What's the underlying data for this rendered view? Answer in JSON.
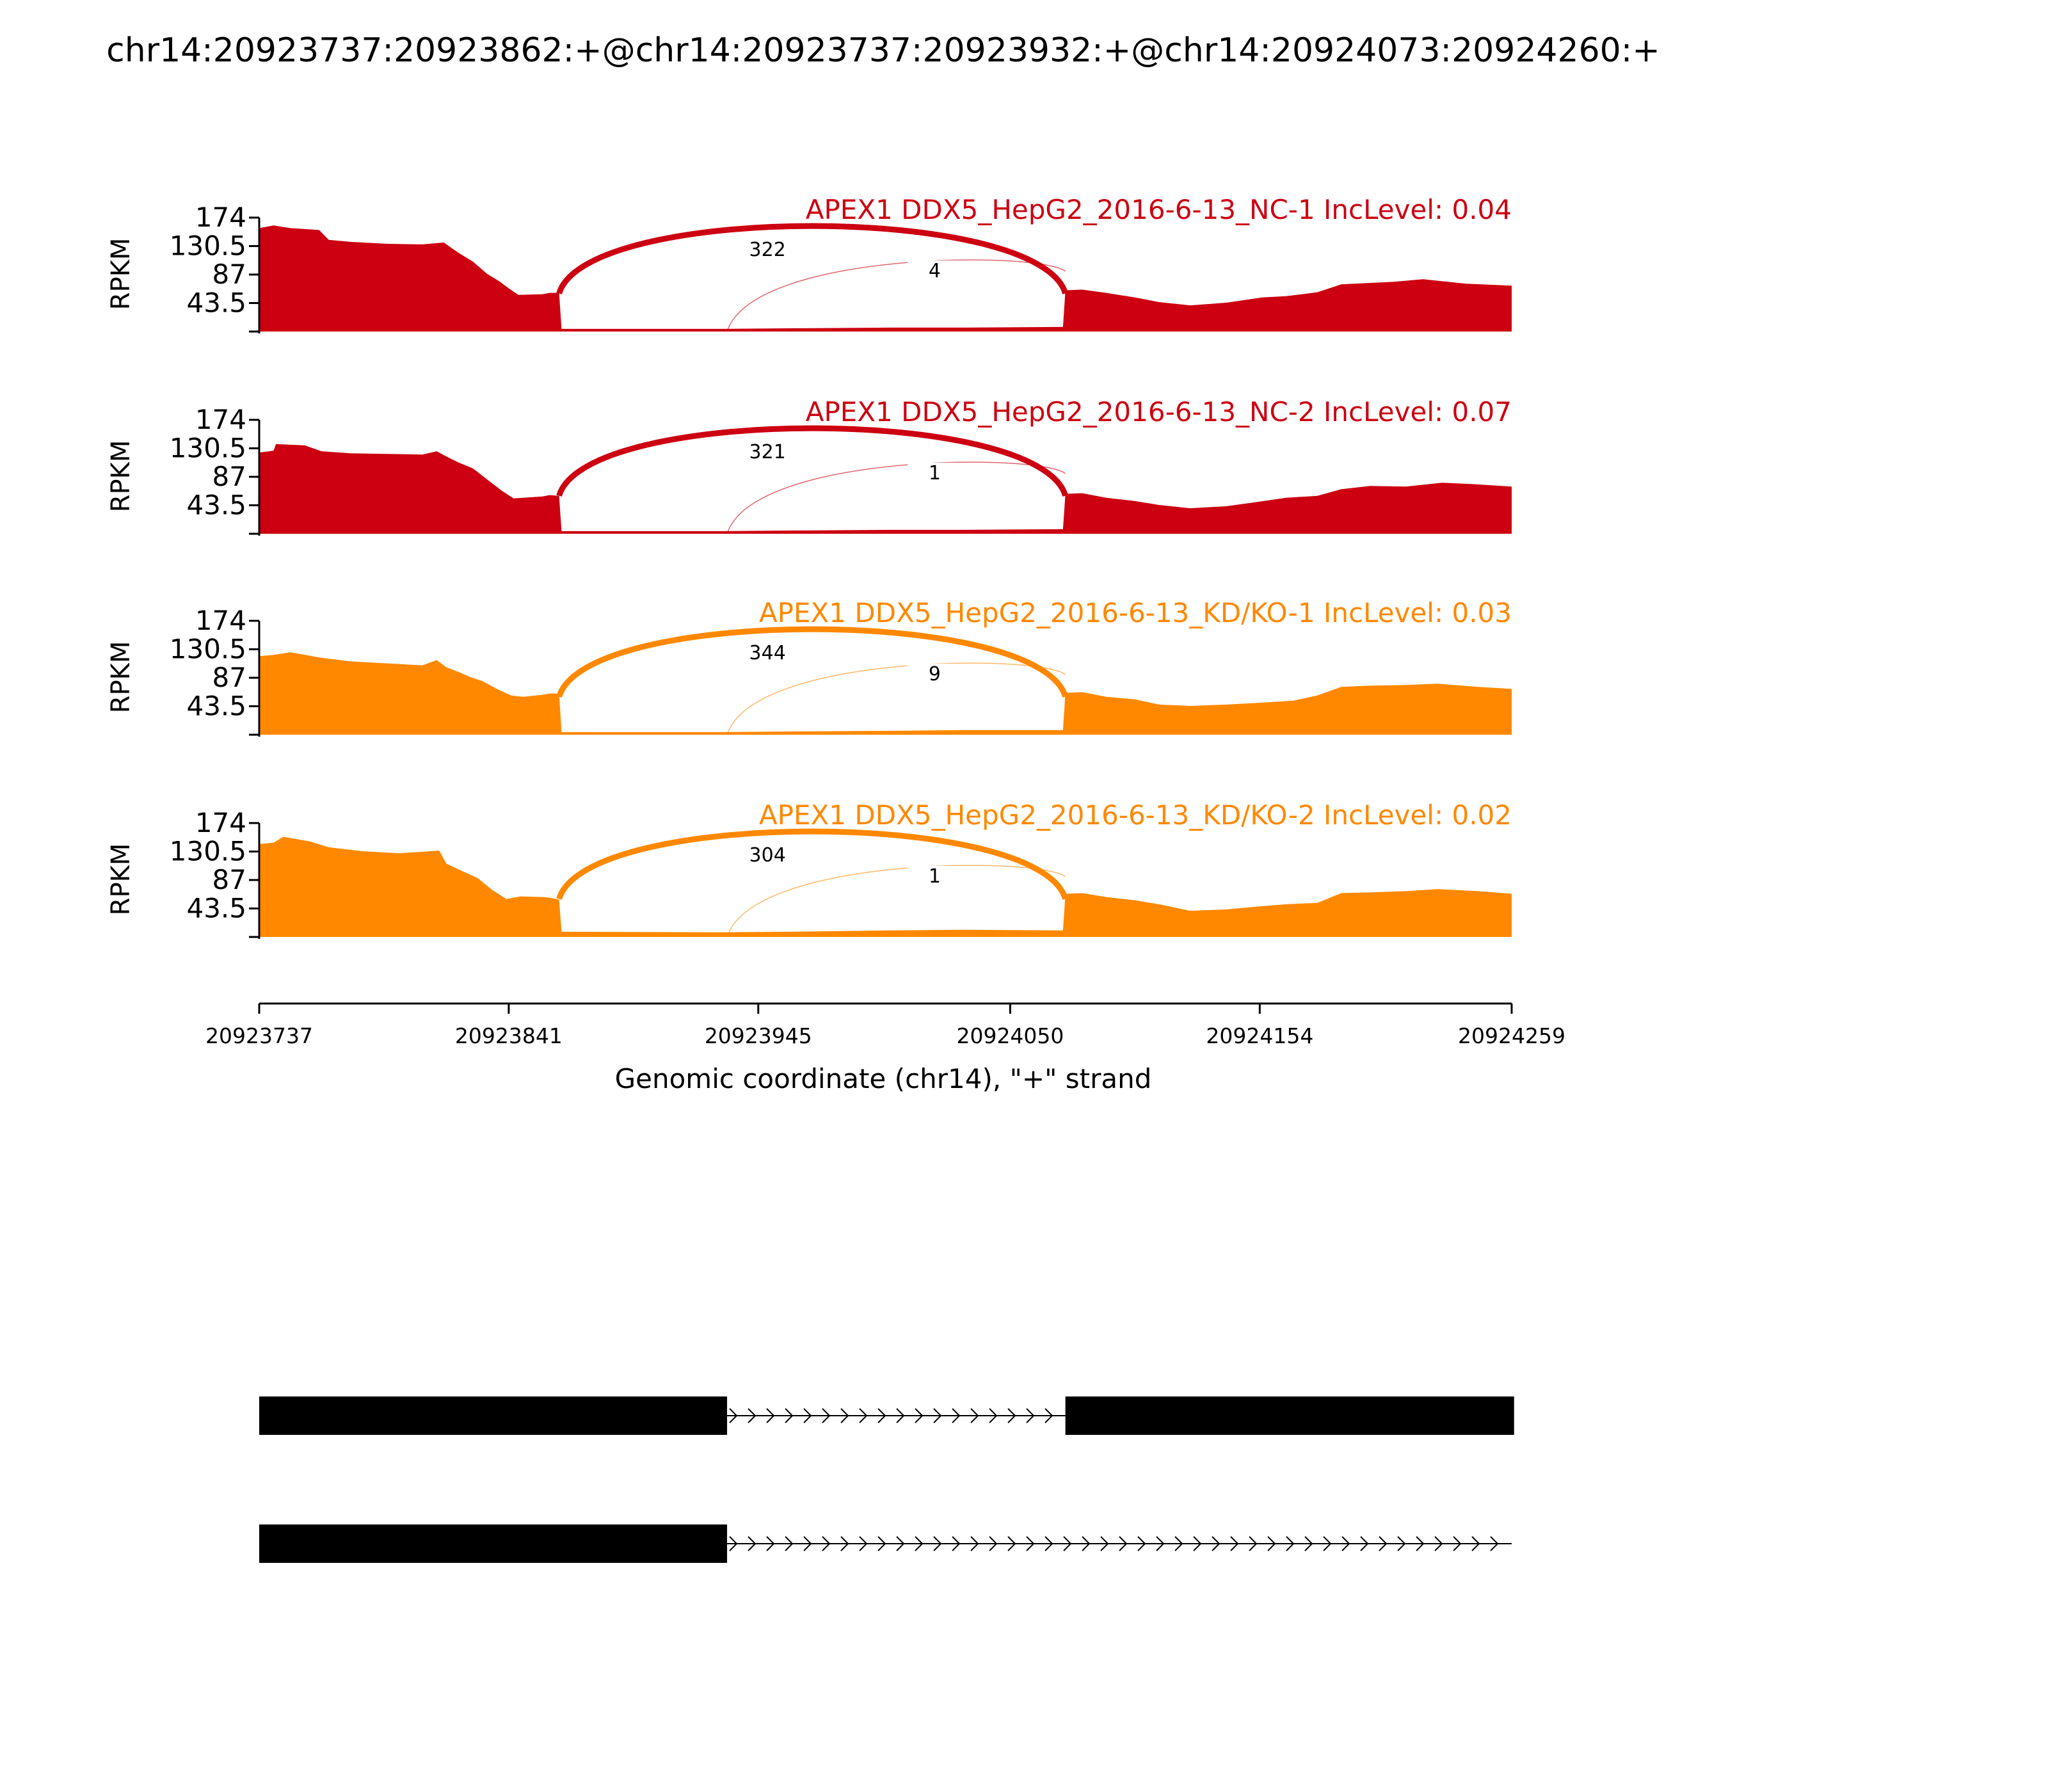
{
  "chart_data": {
    "type": "area",
    "title": "chr14:20923737:20923862:+@chr14:20923737:20923932:+@chr14:20924073:20924260:+",
    "ylabel": "RPKM",
    "xlabel": "Genomic coordinate (chr14), \"+\" strand",
    "x_ticks": [
      "20923737",
      "20923841",
      "20923945",
      "20924050",
      "20924154",
      "20924259"
    ],
    "x_range": [
      20923737,
      20924259
    ],
    "y_ticks": [
      "174",
      "130.5",
      "87",
      "43.5"
    ],
    "ylim": [
      0,
      174
    ],
    "grid": false,
    "exons": [
      {
        "start": 20923737,
        "end": 20923862
      },
      {
        "start": 20923862,
        "end": 20923932
      },
      {
        "start": 20924073,
        "end": 20924260
      }
    ],
    "panels": [
      {
        "label": "APEX1 DDX5_HepG2_2016-6-13_NC-1 IncLevel: 0.04",
        "color": "#CC0011",
        "coverage": [
          [
            20923737,
            158
          ],
          [
            20923743,
            162
          ],
          [
            20923750,
            158
          ],
          [
            20923762,
            155
          ],
          [
            20923766,
            140
          ],
          [
            20923775,
            137
          ],
          [
            20923790,
            134
          ],
          [
            20923805,
            133
          ],
          [
            20923814,
            136
          ],
          [
            20923817,
            128
          ],
          [
            20923821,
            118
          ],
          [
            20923826,
            107
          ],
          [
            20923832,
            88
          ],
          [
            20923837,
            77
          ],
          [
            20923841,
            66
          ],
          [
            20923845,
            56
          ],
          [
            20923855,
            57
          ],
          [
            20923858,
            59
          ],
          [
            20923862,
            59
          ],
          [
            20923863,
            4
          ],
          [
            20923930,
            4
          ],
          [
            20923960,
            5
          ],
          [
            20924000,
            6
          ],
          [
            20924030,
            6
          ],
          [
            20924072,
            7
          ],
          [
            20924073,
            63
          ],
          [
            20924080,
            64
          ],
          [
            20924090,
            59
          ],
          [
            20924102,
            52
          ],
          [
            20924112,
            45
          ],
          [
            20924125,
            40
          ],
          [
            20924140,
            44
          ],
          [
            20924155,
            52
          ],
          [
            20924165,
            54
          ],
          [
            20924178,
            60
          ],
          [
            20924188,
            72
          ],
          [
            20924210,
            76
          ],
          [
            20924222,
            80
          ],
          [
            20924240,
            73
          ],
          [
            20924259,
            70
          ]
        ],
        "junctions": [
          {
            "start": 20923862,
            "end": 20924073,
            "count": "322"
          },
          {
            "start": 20923932,
            "end": 20924073,
            "count": "4"
          }
        ]
      },
      {
        "label": "APEX1 DDX5_HepG2_2016-6-13_NC-2 IncLevel: 0.07",
        "color": "#CC0011",
        "coverage": [
          [
            20923737,
            124
          ],
          [
            20923743,
            127
          ],
          [
            20923744,
            137
          ],
          [
            20923756,
            135
          ],
          [
            20923763,
            126
          ],
          [
            20923775,
            123
          ],
          [
            20923790,
            122
          ],
          [
            20923805,
            121
          ],
          [
            20923811,
            126
          ],
          [
            20923815,
            118
          ],
          [
            20923820,
            109
          ],
          [
            20923826,
            100
          ],
          [
            20923832,
            83
          ],
          [
            20923838,
            66
          ],
          [
            20923843,
            54
          ],
          [
            20923855,
            57
          ],
          [
            20923858,
            59
          ],
          [
            20923862,
            58
          ],
          [
            20923863,
            4
          ],
          [
            20923930,
            4
          ],
          [
            20923960,
            5
          ],
          [
            20924000,
            6
          ],
          [
            20924030,
            6
          ],
          [
            20924072,
            7
          ],
          [
            20924073,
            61
          ],
          [
            20924080,
            62
          ],
          [
            20924090,
            55
          ],
          [
            20924102,
            50
          ],
          [
            20924112,
            44
          ],
          [
            20924125,
            39
          ],
          [
            20924140,
            42
          ],
          [
            20924150,
            47
          ],
          [
            20924165,
            55
          ],
          [
            20924178,
            58
          ],
          [
            20924188,
            68
          ],
          [
            20924200,
            73
          ],
          [
            20924215,
            72
          ],
          [
            20924230,
            78
          ],
          [
            20924242,
            76
          ],
          [
            20924259,
            72
          ]
        ],
        "junctions": [
          {
            "start": 20923862,
            "end": 20924073,
            "count": "321"
          },
          {
            "start": 20923932,
            "end": 20924073,
            "count": "1"
          }
        ]
      },
      {
        "label": "APEX1 DDX5_HepG2_2016-6-13_KD/KO-1 IncLevel: 0.03",
        "color": "#FF8800",
        "coverage": [
          [
            20923737,
            120
          ],
          [
            20923743,
            122
          ],
          [
            20923750,
            126
          ],
          [
            20923762,
            118
          ],
          [
            20923775,
            112
          ],
          [
            20923795,
            108
          ],
          [
            20923805,
            106
          ],
          [
            20923811,
            114
          ],
          [
            20923815,
            103
          ],
          [
            20923820,
            96
          ],
          [
            20923825,
            88
          ],
          [
            20923830,
            82
          ],
          [
            20923836,
            70
          ],
          [
            20923842,
            60
          ],
          [
            20923847,
            58
          ],
          [
            20923855,
            61
          ],
          [
            20923858,
            63
          ],
          [
            20923862,
            63
          ],
          [
            20923863,
            4
          ],
          [
            20923930,
            4
          ],
          [
            20923960,
            5
          ],
          [
            20924000,
            6
          ],
          [
            20924030,
            7
          ],
          [
            20924072,
            7
          ],
          [
            20924073,
            64
          ],
          [
            20924080,
            65
          ],
          [
            20924090,
            58
          ],
          [
            20924102,
            54
          ],
          [
            20924112,
            46
          ],
          [
            20924125,
            44
          ],
          [
            20924140,
            46
          ],
          [
            20924155,
            49
          ],
          [
            20924168,
            52
          ],
          [
            20924178,
            60
          ],
          [
            20924188,
            73
          ],
          [
            20924200,
            75
          ],
          [
            20924215,
            76
          ],
          [
            20924228,
            78
          ],
          [
            20924245,
            73
          ],
          [
            20924259,
            70
          ]
        ],
        "junctions": [
          {
            "start": 20923862,
            "end": 20924073,
            "count": "344"
          },
          {
            "start": 20923932,
            "end": 20924073,
            "count": "9"
          }
        ]
      },
      {
        "label": "APEX1 DDX5_HepG2_2016-6-13_KD/KO-2 IncLevel: 0.02",
        "color": "#FF8800",
        "coverage": [
          [
            20923737,
            142
          ],
          [
            20923743,
            144
          ],
          [
            20923747,
            153
          ],
          [
            20923758,
            146
          ],
          [
            20923766,
            137
          ],
          [
            20923780,
            131
          ],
          [
            20923795,
            128
          ],
          [
            20923805,
            130
          ],
          [
            20923812,
            132
          ],
          [
            20923815,
            112
          ],
          [
            20923822,
            100
          ],
          [
            20923828,
            90
          ],
          [
            20923834,
            72
          ],
          [
            20923840,
            58
          ],
          [
            20923846,
            62
          ],
          [
            20923855,
            61
          ],
          [
            20923858,
            60
          ],
          [
            20923862,
            57
          ],
          [
            20923863,
            8
          ],
          [
            20923930,
            7
          ],
          [
            20923960,
            8
          ],
          [
            20924000,
            10
          ],
          [
            20924030,
            11
          ],
          [
            20924072,
            10
          ],
          [
            20924073,
            66
          ],
          [
            20924080,
            67
          ],
          [
            20924090,
            61
          ],
          [
            20924102,
            56
          ],
          [
            20924112,
            50
          ],
          [
            20924125,
            40
          ],
          [
            20924140,
            42
          ],
          [
            20924155,
            47
          ],
          [
            20924165,
            50
          ],
          [
            20924178,
            52
          ],
          [
            20924188,
            67
          ],
          [
            20924200,
            68
          ],
          [
            20924215,
            70
          ],
          [
            20924228,
            73
          ],
          [
            20924245,
            70
          ],
          [
            20924259,
            66
          ]
        ],
        "junctions": [
          {
            "start": 20923862,
            "end": 20924073,
            "count": "304"
          },
          {
            "start": 20923932,
            "end": 20924073,
            "count": "1"
          }
        ]
      }
    ],
    "transcripts": [
      {
        "exons": [
          [
            20923737,
            20923932
          ],
          [
            20924073,
            20924260
          ]
        ]
      },
      {
        "exons": [
          [
            20923737,
            20923932
          ]
        ]
      }
    ]
  }
}
